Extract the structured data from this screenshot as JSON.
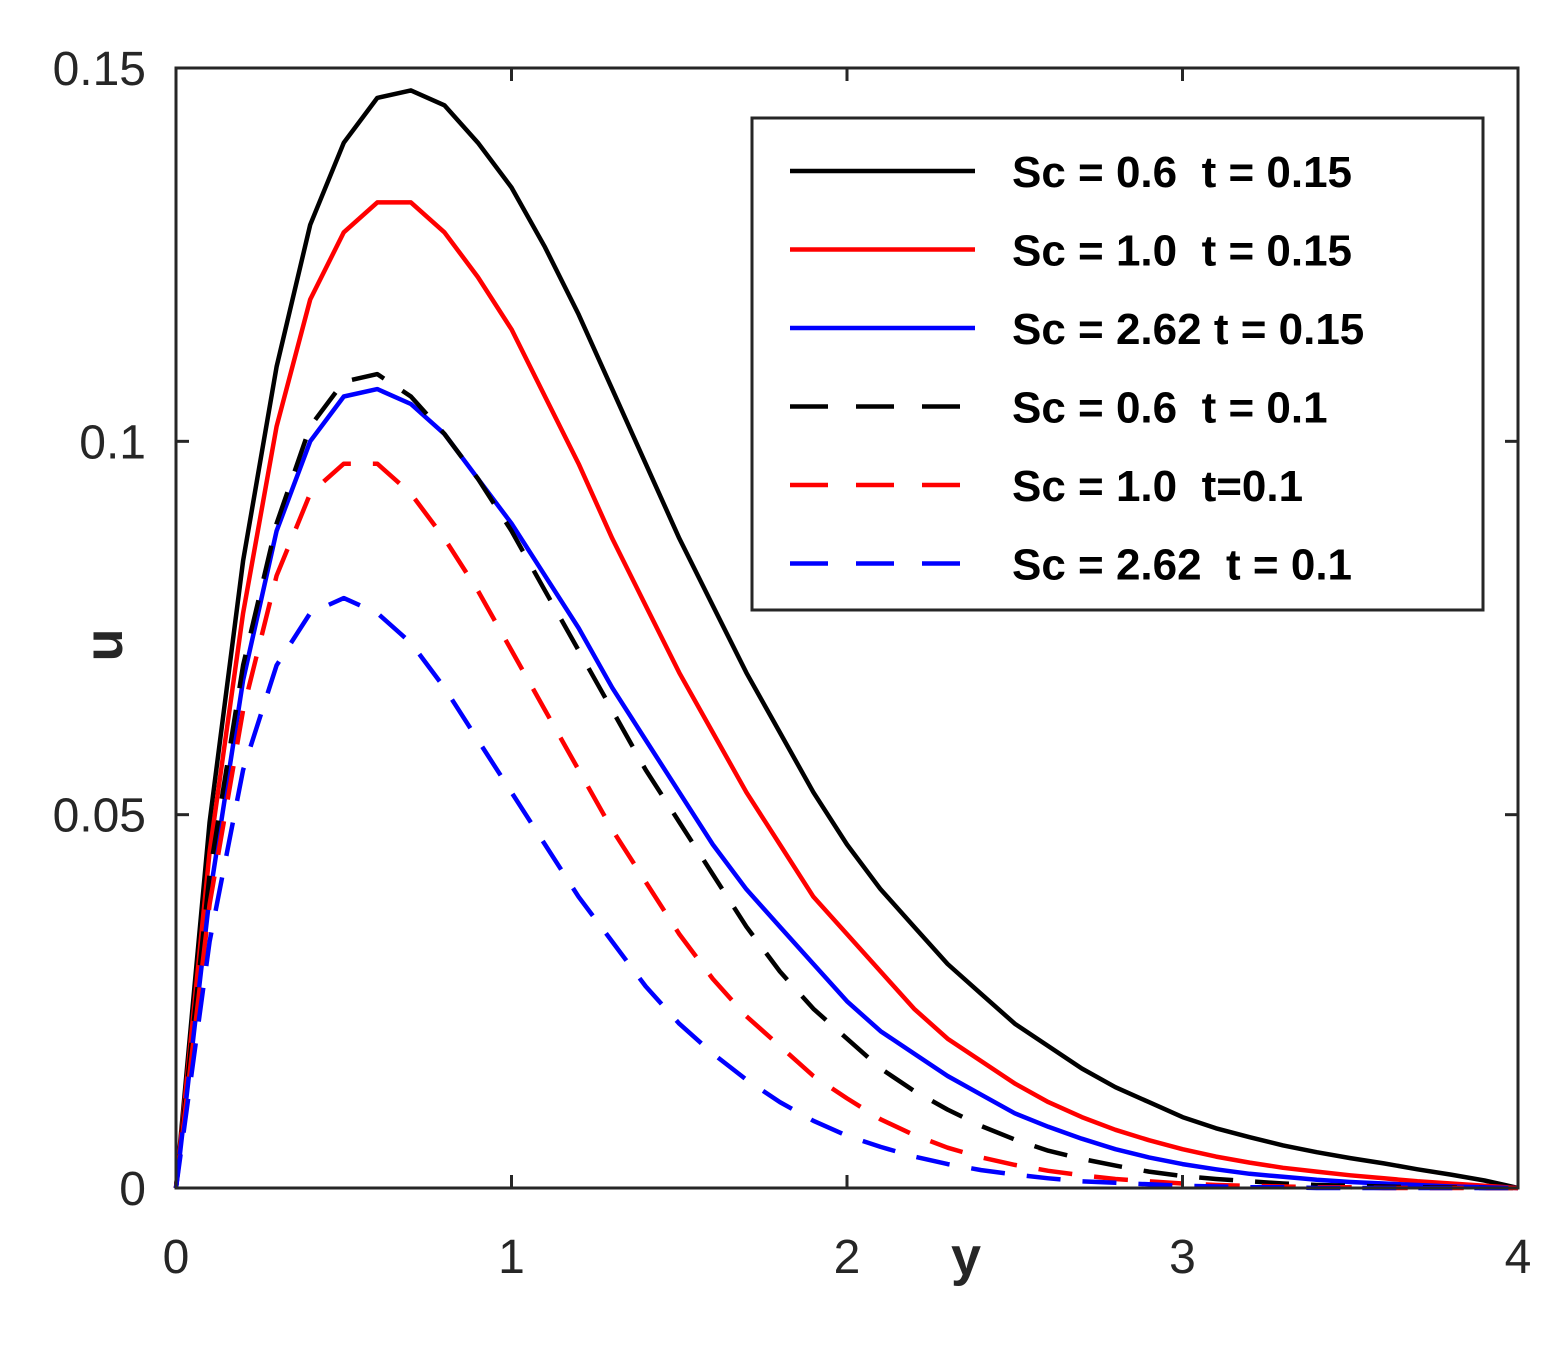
{
  "chart_data": {
    "type": "line",
    "title": "",
    "xlabel": "y",
    "ylabel": "u",
    "xlim": [
      0,
      4
    ],
    "ylim": [
      0,
      0.15
    ],
    "xticks": [
      0,
      1,
      2,
      3,
      4
    ],
    "xtick_labels": [
      "0",
      "1",
      "2",
      "3",
      "4"
    ],
    "yticks": [
      0,
      0.05,
      0.1,
      0.15
    ],
    "ytick_labels": [
      "0",
      "0.05",
      "0.1",
      "0.15"
    ],
    "grid": false,
    "legend_position": "top-right",
    "x": [
      0,
      0.1,
      0.2,
      0.3,
      0.4,
      0.5,
      0.6,
      0.7,
      0.8,
      0.9,
      1.0,
      1.1,
      1.2,
      1.3,
      1.4,
      1.5,
      1.6,
      1.7,
      1.8,
      1.9,
      2.0,
      2.1,
      2.2,
      2.3,
      2.4,
      2.5,
      2.6,
      2.7,
      2.8,
      2.9,
      3.0,
      3.1,
      3.2,
      3.3,
      3.4,
      3.5,
      3.6,
      3.7,
      3.8,
      3.9,
      4.0
    ],
    "series": [
      {
        "name": "Sc = 0.6  t = 0.15",
        "color": "#000000",
        "style": "solid",
        "values": [
          0,
          0.049,
          0.084,
          0.11,
          0.129,
          0.14,
          0.146,
          0.147,
          0.145,
          0.14,
          0.134,
          0.126,
          0.117,
          0.107,
          0.097,
          0.087,
          0.078,
          0.069,
          0.061,
          0.053,
          0.046,
          0.04,
          0.035,
          0.03,
          0.026,
          0.022,
          0.019,
          0.016,
          0.0135,
          0.0115,
          0.0095,
          0.008,
          0.0068,
          0.0057,
          0.0048,
          0.004,
          0.0033,
          0.0025,
          0.0018,
          0.001,
          0
        ]
      },
      {
        "name": "Sc = 1.0  t = 0.15",
        "color": "#ff0000",
        "style": "solid",
        "values": [
          0,
          0.045,
          0.077,
          0.102,
          0.119,
          0.128,
          0.132,
          0.132,
          0.128,
          0.122,
          0.115,
          0.106,
          0.097,
          0.087,
          0.078,
          0.069,
          0.061,
          0.053,
          0.046,
          0.039,
          0.034,
          0.029,
          0.024,
          0.02,
          0.017,
          0.014,
          0.0115,
          0.0095,
          0.0078,
          0.0064,
          0.0052,
          0.0042,
          0.0034,
          0.0027,
          0.0022,
          0.0017,
          0.0013,
          0.0009,
          0.0006,
          0.0003,
          0
        ]
      },
      {
        "name": "Sc = 2.62 t = 0.15",
        "color": "#0000ff",
        "style": "solid",
        "values": [
          0,
          0.039,
          0.068,
          0.088,
          0.1,
          0.106,
          0.107,
          0.105,
          0.101,
          0.095,
          0.089,
          0.082,
          0.075,
          0.067,
          0.06,
          0.053,
          0.046,
          0.04,
          0.035,
          0.03,
          0.025,
          0.021,
          0.018,
          0.015,
          0.0125,
          0.01,
          0.0082,
          0.0066,
          0.0052,
          0.0041,
          0.0032,
          0.0025,
          0.0019,
          0.0015,
          0.0011,
          0.0008,
          0.0006,
          0.0004,
          0.0002,
          0.0001,
          0
        ]
      },
      {
        "name": "Sc = 0.6  t = 0.1",
        "color": "#000000",
        "style": "dashed",
        "values": [
          0,
          0.042,
          0.07,
          0.089,
          0.102,
          0.108,
          0.109,
          0.106,
          0.101,
          0.095,
          0.088,
          0.08,
          0.072,
          0.064,
          0.056,
          0.049,
          0.042,
          0.035,
          0.029,
          0.024,
          0.02,
          0.016,
          0.013,
          0.0105,
          0.0083,
          0.0065,
          0.005,
          0.0039,
          0.003,
          0.0022,
          0.0016,
          0.0012,
          0.0009,
          0.0006,
          0.0004,
          0.0003,
          0.0002,
          0.0001,
          0.0001,
          0,
          0
        ]
      },
      {
        "name": "Sc = 1.0  t=0.1",
        "color": "#ff0000",
        "style": "dashed",
        "values": [
          0,
          0.038,
          0.064,
          0.082,
          0.093,
          0.097,
          0.097,
          0.093,
          0.087,
          0.08,
          0.072,
          0.064,
          0.056,
          0.048,
          0.041,
          0.034,
          0.028,
          0.023,
          0.019,
          0.015,
          0.012,
          0.0092,
          0.0071,
          0.0054,
          0.0041,
          0.0031,
          0.0023,
          0.0017,
          0.0012,
          0.0009,
          0.0006,
          0.0004,
          0.0003,
          0.0002,
          0.0001,
          0.0001,
          0,
          0,
          0,
          0,
          0
        ]
      },
      {
        "name": "Sc = 2.62  t = 0.1",
        "color": "#0000ff",
        "style": "dashed",
        "values": [
          0,
          0.033,
          0.056,
          0.07,
          0.077,
          0.079,
          0.077,
          0.073,
          0.067,
          0.06,
          0.053,
          0.046,
          0.039,
          0.033,
          0.027,
          0.022,
          0.018,
          0.0145,
          0.0115,
          0.009,
          0.007,
          0.0055,
          0.0042,
          0.0032,
          0.0024,
          0.0018,
          0.0013,
          0.0009,
          0.0007,
          0.0005,
          0.0003,
          0.0002,
          0.0001,
          0.0001,
          0,
          0,
          0,
          0,
          0,
          0,
          0
        ]
      }
    ]
  }
}
